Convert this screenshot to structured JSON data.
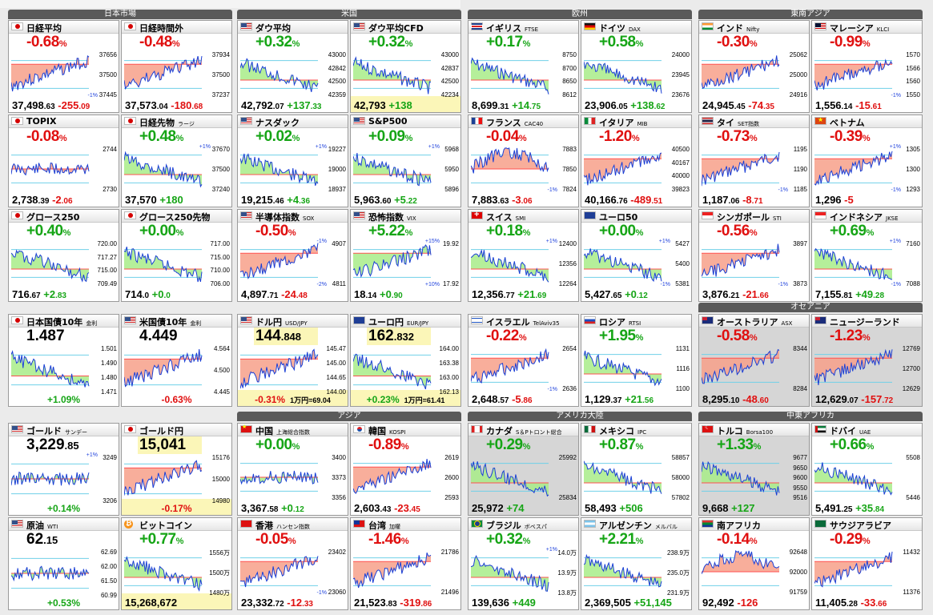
{
  "regions": {
    "japan": "日本市場",
    "us": "米国",
    "europe": "欧州",
    "sea": "東南アジア",
    "oceania": "オセアニア",
    "asia": "アジア",
    "americas": "アメリカ大陸",
    "meafrica": "中東アフリカ"
  },
  "colors": {
    "up": "#16a516",
    "down": "#e01010",
    "line": "#1a3fd6",
    "fill_up": "#a8ec88",
    "fill_down": "#f7a08a"
  },
  "cards": [
    {
      "id": "nikkei",
      "flag": "jp",
      "name": "日経平均",
      "sub": "",
      "chg": "-0.68",
      "dir": "dn",
      "axis": [
        "37656",
        "37500",
        "37445"
      ],
      "pct": [
        "",
        "-1%"
      ],
      "price_main": "37,498",
      "price_small": ".63",
      "delta_main": "-255",
      "delta_small": ".09",
      "ddir": "d",
      "trend": "down"
    },
    {
      "id": "nikkei_ah",
      "flag": "jp",
      "name": "日経時間外",
      "sub": "",
      "chg": "-0.48",
      "dir": "dn",
      "axis": [
        "37934",
        "37500",
        "37237"
      ],
      "pct": [
        "",
        ""
      ],
      "price_main": "37,573",
      "price_small": ".04",
      "delta_main": "-180",
      "delta_small": ".68",
      "ddir": "d",
      "trend": "down"
    },
    {
      "id": "dow",
      "flag": "us",
      "name": "ダウ平均",
      "sub": "",
      "chg": "+0.32",
      "dir": "up",
      "axis": [
        "43000",
        "42842",
        "42500",
        "42359"
      ],
      "pct": [
        "",
        ""
      ],
      "price_main": "42,792",
      "price_small": ".07",
      "delta_main": "+137",
      "delta_small": ".33",
      "ddir": "u",
      "trend": "up"
    },
    {
      "id": "dowcfd",
      "flag": "us",
      "name": "ダウ平均CFD",
      "sub": "",
      "chg": "+0.32",
      "dir": "up",
      "axis": [
        "43000",
        "42837",
        "42500",
        "42234"
      ],
      "pct": [
        "",
        ""
      ],
      "price_main": "42,793",
      "price_small": "",
      "delta_main": "+138",
      "delta_small": "",
      "ddir": "u",
      "trend": "up",
      "hl": true
    },
    {
      "id": "ftse",
      "flag": "gb",
      "name": "イギリス",
      "sub": "FTSE",
      "chg": "+0.17",
      "dir": "up",
      "axis": [
        "8750",
        "8700",
        "8650",
        "8612"
      ],
      "pct": [
        "",
        ""
      ],
      "price_main": "8,699",
      "price_small": ".31",
      "delta_main": "+14",
      "delta_small": ".75",
      "ddir": "u",
      "trend": "up"
    },
    {
      "id": "dax",
      "flag": "de",
      "name": "ドイツ",
      "sub": "DAX",
      "chg": "+0.58",
      "dir": "up",
      "axis": [
        "24000",
        "23945",
        "23676"
      ],
      "pct": [
        "",
        ""
      ],
      "price_main": "23,906",
      "price_small": ".05",
      "delta_main": "+138",
      "delta_small": ".62",
      "ddir": "u",
      "trend": "up"
    },
    {
      "id": "nifty",
      "flag": "in",
      "name": "インド",
      "sub": "Nifty",
      "chg": "-0.30",
      "dir": "dn",
      "axis": [
        "25062",
        "25000",
        "24916"
      ],
      "pct": [
        "",
        ""
      ],
      "price_main": "24,945",
      "price_small": ".45",
      "delta_main": "-74",
      "delta_small": ".35",
      "ddir": "d",
      "trend": "down"
    },
    {
      "id": "klci",
      "flag": "my",
      "name": "マレーシア",
      "sub": "KLCI",
      "chg": "-0.99",
      "dir": "dn",
      "axis": [
        "1570",
        "1566",
        "1560",
        "1550"
      ],
      "pct": [
        "",
        "-1%"
      ],
      "price_main": "1,556",
      "price_small": ".14",
      "delta_main": "-15",
      "delta_small": ".61",
      "ddir": "d",
      "trend": "down"
    },
    {
      "id": "topix",
      "flag": "jp",
      "name": "TOPIX",
      "sub": "",
      "chg": "-0.08",
      "dir": "dn",
      "axis": [
        "2744",
        "2730"
      ],
      "pct": [
        "",
        ""
      ],
      "price_main": "2,738",
      "price_small": ".39",
      "delta_main": "-2",
      "delta_small": ".06",
      "ddir": "d",
      "trend": "flat"
    },
    {
      "id": "nkfut",
      "flag": "jp",
      "name": "日経先物",
      "sub": "ラージ",
      "chg": "+0.48",
      "dir": "up",
      "axis": [
        "37670",
        "37500",
        "37240"
      ],
      "pct": [
        "+1%",
        ""
      ],
      "price_main": "37,570",
      "price_small": "",
      "delta_main": "+180",
      "delta_small": "",
      "ddir": "u",
      "trend": "up"
    },
    {
      "id": "nasdaq",
      "flag": "us",
      "name": "ナスダック",
      "sub": "",
      "chg": "+0.02",
      "dir": "up",
      "axis": [
        "19227",
        "19000",
        "18937"
      ],
      "pct": [
        "+1%",
        ""
      ],
      "price_main": "19,215",
      "price_small": ".46",
      "delta_main": "+4",
      "delta_small": ".36",
      "ddir": "u",
      "trend": "up"
    },
    {
      "id": "sp500",
      "flag": "us",
      "name": "S&P500",
      "sub": "",
      "chg": "+0.09",
      "dir": "up",
      "axis": [
        "5968",
        "5950",
        "5896"
      ],
      "pct": [
        "+1%",
        ""
      ],
      "price_main": "5,963",
      "price_small": ".60",
      "delta_main": "+5",
      "delta_small": ".22",
      "ddir": "u",
      "trend": "up"
    },
    {
      "id": "cac",
      "flag": "fr",
      "name": "フランス",
      "sub": "CAC40",
      "chg": "-0.04",
      "dir": "dn",
      "axis": [
        "7883",
        "7850",
        "7824"
      ],
      "pct": [
        "",
        "-1%"
      ],
      "price_main": "7,883",
      "price_small": ".63",
      "delta_main": "-3",
      "delta_small": ".06",
      "ddir": "d",
      "trend": "vdip"
    },
    {
      "id": "mib",
      "flag": "it",
      "name": "イタリア",
      "sub": "MIB",
      "chg": "-1.20",
      "dir": "dn",
      "axis": [
        "40500",
        "40167",
        "40000",
        "39823"
      ],
      "pct": [
        "",
        ""
      ],
      "price_main": "40,166",
      "price_small": ".76",
      "delta_main": "-489",
      "delta_small": ".51",
      "ddir": "d",
      "trend": "down"
    },
    {
      "id": "set",
      "flag": "th",
      "name": "タイ",
      "sub": "SET指数",
      "chg": "-0.73",
      "dir": "dn",
      "axis": [
        "1195",
        "1190",
        "1185"
      ],
      "pct": [
        "",
        "-1%"
      ],
      "price_main": "1,187",
      "price_small": ".06",
      "delta_main": "-8",
      "delta_small": ".71",
      "ddir": "d",
      "trend": "down"
    },
    {
      "id": "vn",
      "flag": "vn",
      "name": "ベトナム",
      "sub": "",
      "chg": "-0.39",
      "dir": "dn",
      "axis": [
        "1305",
        "1300",
        "1293"
      ],
      "pct": [
        "+1%",
        "-1%"
      ],
      "price_main": "1,296",
      "price_small": "",
      "delta_main": "-5",
      "delta_small": "",
      "ddir": "d",
      "trend": "down"
    },
    {
      "id": "g250",
      "flag": "jp",
      "name": "グロース250",
      "sub": "",
      "chg": "+0.40",
      "dir": "up",
      "axis": [
        "720.00",
        "717.27",
        "715.00",
        "709.49"
      ],
      "pct": [
        "",
        ""
      ],
      "price_main": "716",
      "price_small": ".67",
      "delta_main": "+2",
      "delta_small": ".83",
      "ddir": "u",
      "trend": "up"
    },
    {
      "id": "g250f",
      "flag": "jp",
      "name": "グロース250先物",
      "sub": "",
      "chg": "+0.00",
      "dir": "up",
      "axis": [
        "717.00",
        "715.00",
        "710.00",
        "706.00"
      ],
      "pct": [
        "",
        ""
      ],
      "price_main": "714",
      "price_small": ".0",
      "delta_main": "+0",
      "delta_small": ".0",
      "ddir": "u",
      "trend": "up"
    },
    {
      "id": "sox",
      "flag": "us",
      "name": "半導体指数",
      "sub": "SOX",
      "chg": "-0.50",
      "dir": "dn",
      "axis": [
        "4907",
        "4811"
      ],
      "pct": [
        "-1%",
        "-2%"
      ],
      "price_main": "4,897",
      "price_small": ".71",
      "delta_main": "-24",
      "delta_small": ".48",
      "ddir": "d",
      "trend": "down"
    },
    {
      "id": "vix",
      "flag": "us",
      "name": "恐怖指数",
      "sub": "VIX",
      "chg": "+5.22",
      "dir": "up",
      "axis": [
        "19.92",
        "17.92"
      ],
      "pct": [
        "+15%",
        "+10%"
      ],
      "price_main": "18",
      "price_small": ".14",
      "delta_main": "+0",
      "delta_small": ".90",
      "ddir": "u",
      "trend": "down",
      "vix": true
    },
    {
      "id": "smi",
      "flag": "ch",
      "name": "スイス",
      "sub": "SMI",
      "chg": "+0.18",
      "dir": "up",
      "axis": [
        "12400",
        "12356",
        "12264"
      ],
      "pct": [
        "+1%",
        ""
      ],
      "price_main": "12,356",
      "price_small": ".77",
      "delta_main": "+21",
      "delta_small": ".69",
      "ddir": "u",
      "trend": "up"
    },
    {
      "id": "eu50",
      "flag": "eu",
      "name": "ユーロ50",
      "sub": "",
      "chg": "+0.00",
      "dir": "up",
      "axis": [
        "5427",
        "5400",
        "5381"
      ],
      "pct": [
        "+1%",
        "-1%"
      ],
      "price_main": "5,427",
      "price_small": ".65",
      "delta_main": "+0",
      "delta_small": ".12",
      "ddir": "u",
      "trend": "up"
    },
    {
      "id": "sti",
      "flag": "sg",
      "name": "シンガポール",
      "sub": "STI",
      "chg": "-0.56",
      "dir": "dn",
      "axis": [
        "3897",
        "3873"
      ],
      "pct": [
        "",
        "-1%"
      ],
      "price_main": "3,876",
      "price_small": ".21",
      "delta_main": "-21",
      "delta_small": ".66",
      "ddir": "d",
      "trend": "down"
    },
    {
      "id": "jkse",
      "flag": "id",
      "name": "インドネシア",
      "sub": "JKSE",
      "chg": "+0.69",
      "dir": "up",
      "axis": [
        "7160",
        "7088"
      ],
      "pct": [
        "+1%",
        "-1%"
      ],
      "price_main": "7,155",
      "price_small": ".81",
      "delta_main": "+49",
      "delta_small": ".28",
      "ddir": "u",
      "trend": "up"
    },
    {
      "id": "jgb10",
      "flag": "jp",
      "name": "日本国債10年",
      "sub": "金利",
      "level_main": "1.487",
      "level_small": "",
      "axis": [
        "1.501",
        "1.490",
        "1.480",
        "1.471"
      ],
      "foot": "+1.09%",
      "fdir": "u",
      "trend": "up",
      "rate": true
    },
    {
      "id": "ust10",
      "flag": "us",
      "name": "米国債10年",
      "sub": "金利",
      "level_main": "4.449",
      "level_small": "",
      "axis": [
        "4.564",
        "4.500",
        "4.445"
      ],
      "foot": "-0.63%",
      "fdir": "d",
      "trend": "down",
      "rate": true
    },
    {
      "id": "usdjpy",
      "flag": "us",
      "name": "ドル円",
      "sub": "USD/JPY",
      "level_main": "144",
      "level_small": ".848",
      "axis": [
        "145.47",
        "145.00",
        "144.65",
        "144.00"
      ],
      "foot": "-0.31%",
      "fdir": "d",
      "extra": "1万円=69.04",
      "trend": "down",
      "hl": true
    },
    {
      "id": "eurjpy",
      "flag": "eu",
      "name": "ユーロ円",
      "sub": "EUR/JPY",
      "level_main": "162",
      "level_small": ".832",
      "axis": [
        "164.00",
        "163.38",
        "163.00",
        "162.13"
      ],
      "foot": "+0.23%",
      "fdir": "u",
      "extra": "1万円=61.41",
      "trend": "up",
      "hl": true
    },
    {
      "id": "ta35",
      "flag": "il",
      "name": "イスラエル",
      "sub": "TelAviv35",
      "chg": "-0.22",
      "dir": "dn",
      "axis": [
        "2654",
        "2636"
      ],
      "pct": [
        "",
        "-1%"
      ],
      "price_main": "2,648",
      "price_small": ".57",
      "delta_main": "-5",
      "delta_small": ".86",
      "ddir": "d",
      "trend": "down"
    },
    {
      "id": "rtsi",
      "flag": "ru",
      "name": "ロシア",
      "sub": "RTSI",
      "chg": "+1.95",
      "dir": "up",
      "axis": [
        "1131",
        "1116",
        "1100"
      ],
      "pct": [
        "",
        ""
      ],
      "price_main": "1,129",
      "price_small": ".37",
      "delta_main": "+21",
      "delta_small": ".56",
      "ddir": "u",
      "trend": "up"
    },
    {
      "id": "asx",
      "flag": "au",
      "name": "オーストラリア",
      "sub": "ASX",
      "chg": "-0.58",
      "dir": "dn",
      "axis": [
        "8344",
        "8284"
      ],
      "pct": [
        "",
        ""
      ],
      "price_main": "8,295",
      "price_small": ".10",
      "delta_main": "-48",
      "delta_small": ".60",
      "ddir": "d",
      "trend": "down",
      "gray": true
    },
    {
      "id": "nz",
      "flag": "nz",
      "name": "ニュージーランド",
      "sub": "",
      "chg": "-1.23",
      "dir": "dn",
      "axis": [
        "12769",
        "12700",
        "12629"
      ],
      "pct": [
        "",
        ""
      ],
      "price_main": "12,629",
      "price_small": ".07",
      "delta_main": "-157",
      "delta_small": ".72",
      "ddir": "d",
      "trend": "down",
      "gray": true
    },
    {
      "id": "gold",
      "flag": "us",
      "name": "ゴールド",
      "sub": "サンデー",
      "level_main": "3,229",
      "level_small": ".85",
      "axis": [
        "3249",
        "3206"
      ],
      "foot": "+0.14%",
      "fdir": "u",
      "trend": "flat",
      "pct": [
        "+1%",
        ""
      ]
    },
    {
      "id": "goldjpy",
      "flag": "jp",
      "name": "ゴールド円",
      "sub": "",
      "level_main": "15,041",
      "level_small": "",
      "axis": [
        "15176",
        "15000",
        "14980"
      ],
      "foot": "-0.17%",
      "fdir": "d",
      "trend": "down",
      "hl": true
    },
    {
      "id": "shanghai",
      "flag": "cn",
      "name": "中国",
      "sub": "上海総合指数",
      "chg": "+0.00",
      "dir": "up",
      "axis": [
        "3400",
        "3373",
        "3356"
      ],
      "pct": [
        "",
        ""
      ],
      "price_main": "3,367",
      "price_small": ".58",
      "delta_main": "+0",
      "delta_small": ".12",
      "ddir": "u",
      "trend": "flat"
    },
    {
      "id": "kospi",
      "flag": "kr",
      "name": "韓国",
      "sub": "KOSPI",
      "chg": "-0.89",
      "dir": "dn",
      "axis": [
        "2619",
        "2600",
        "2593"
      ],
      "pct": [
        "",
        ""
      ],
      "price_main": "2,603",
      "price_small": ".43",
      "delta_main": "-23",
      "delta_small": ".45",
      "ddir": "d",
      "trend": "down"
    },
    {
      "id": "tsx",
      "flag": "ca",
      "name": "カナダ",
      "sub": "S＆Pトロント総合",
      "chg": "+0.29",
      "dir": "up",
      "axis": [
        "25992",
        "25834"
      ],
      "pct": [
        "",
        ""
      ],
      "price_main": "25,972",
      "price_small": "",
      "delta_main": "+74",
      "delta_small": "",
      "ddir": "u",
      "trend": "up",
      "gray": true
    },
    {
      "id": "ipc",
      "flag": "mx",
      "name": "メキシコ",
      "sub": "IPC",
      "chg": "+0.87",
      "dir": "up",
      "axis": [
        "58857",
        "58000",
        "57802"
      ],
      "pct": [
        "",
        ""
      ],
      "price_main": "58,493",
      "price_small": "",
      "delta_main": "+506",
      "delta_small": "",
      "ddir": "u",
      "trend": "up"
    },
    {
      "id": "bist",
      "flag": "tr",
      "name": "トルコ",
      "sub": "Borsa100",
      "chg": "+1.33",
      "dir": "up",
      "axis": [
        "9677",
        "9650",
        "9600",
        "9550",
        "9516"
      ],
      "pct": [
        "",
        ""
      ],
      "price_main": "9,668",
      "price_small": "",
      "delta_main": "+127",
      "delta_small": "",
      "ddir": "u",
      "trend": "up",
      "gray": true
    },
    {
      "id": "dfm",
      "flag": "ae",
      "name": "ドバイ",
      "sub": "UAE",
      "chg": "+0.66",
      "dir": "up",
      "axis": [
        "5508",
        "5446"
      ],
      "pct": [
        "",
        ""
      ],
      "price_main": "5,491",
      "price_small": ".25",
      "delta_main": "+35",
      "delta_small": ".84",
      "ddir": "u",
      "trend": "up"
    },
    {
      "id": "wti",
      "flag": "us",
      "name": "原油",
      "sub": "WTI",
      "level_main": "62",
      "level_small": ".15",
      "axis": [
        "62.69",
        "62.00",
        "61.50",
        "60.99"
      ],
      "foot": "+0.53%",
      "fdir": "u",
      "trend": "flat"
    },
    {
      "id": "btc",
      "flag": "bt",
      "name": "ビットコイン",
      "sub": "",
      "chg": "+0.77",
      "dir": "up",
      "axis": [
        "1556万",
        "1500万",
        "1480万"
      ],
      "pct": [
        "",
        ""
      ],
      "price_main": "15,268,672",
      "price_small": "",
      "delta_main": "",
      "delta_small": "",
      "ddir": "u",
      "trend": "up",
      "hl": true,
      "nodelta": true
    },
    {
      "id": "hsi",
      "flag": "hk",
      "name": "香港",
      "sub": "ハンセン指数",
      "chg": "-0.05",
      "dir": "dn",
      "axis": [
        "23402",
        "23060"
      ],
      "pct": [
        "",
        "-1%"
      ],
      "price_main": "23,332",
      "price_small": ".72",
      "delta_main": "-12",
      "delta_small": ".33",
      "ddir": "d",
      "trend": "down"
    },
    {
      "id": "twse",
      "flag": "tw",
      "name": "台湾",
      "sub": "加權",
      "chg": "-1.46",
      "dir": "dn",
      "axis": [
        "21786",
        "21496"
      ],
      "pct": [
        "",
        ""
      ],
      "price_main": "21,523",
      "price_small": ".83",
      "delta_main": "-319",
      "delta_small": ".86",
      "ddir": "d",
      "trend": "down"
    },
    {
      "id": "bovespa",
      "flag": "br",
      "name": "ブラジル",
      "sub": "ボベスパ",
      "chg": "+0.32",
      "dir": "up",
      "axis": [
        "14.0万",
        "13.9万",
        "13.8万"
      ],
      "pct": [
        "+1%",
        ""
      ],
      "price_main": "139,636",
      "price_small": "",
      "delta_main": "+449",
      "delta_small": "",
      "ddir": "u",
      "trend": "up"
    },
    {
      "id": "merval",
      "flag": "ar",
      "name": "アルゼンチン",
      "sub": "メルバル",
      "chg": "+2.21",
      "dir": "up",
      "axis": [
        "238.9万",
        "235.0万",
        "231.9万"
      ],
      "pct": [
        "",
        ""
      ],
      "price_main": "2,369,505",
      "price_small": "",
      "delta_main": "+51,145",
      "delta_small": "",
      "ddir": "u",
      "trend": "up"
    },
    {
      "id": "jse",
      "flag": "za",
      "name": "南アフリカ",
      "sub": "",
      "chg": "-0.14",
      "dir": "dn",
      "axis": [
        "92648",
        "92000",
        "91759"
      ],
      "pct": [
        "",
        ""
      ],
      "price_main": "92,492",
      "price_small": "",
      "delta_main": "-126",
      "delta_small": "",
      "ddir": "d",
      "trend": "vdip"
    },
    {
      "id": "tasi",
      "flag": "sa",
      "name": "サウジアラビア",
      "sub": "",
      "chg": "-0.29",
      "dir": "dn",
      "axis": [
        "11432",
        "11376"
      ],
      "pct": [
        "",
        ""
      ],
      "price_main": "11,405",
      "price_small": ".28",
      "delta_main": "-33",
      "delta_small": ".66",
      "ddir": "d",
      "trend": "down"
    }
  ]
}
